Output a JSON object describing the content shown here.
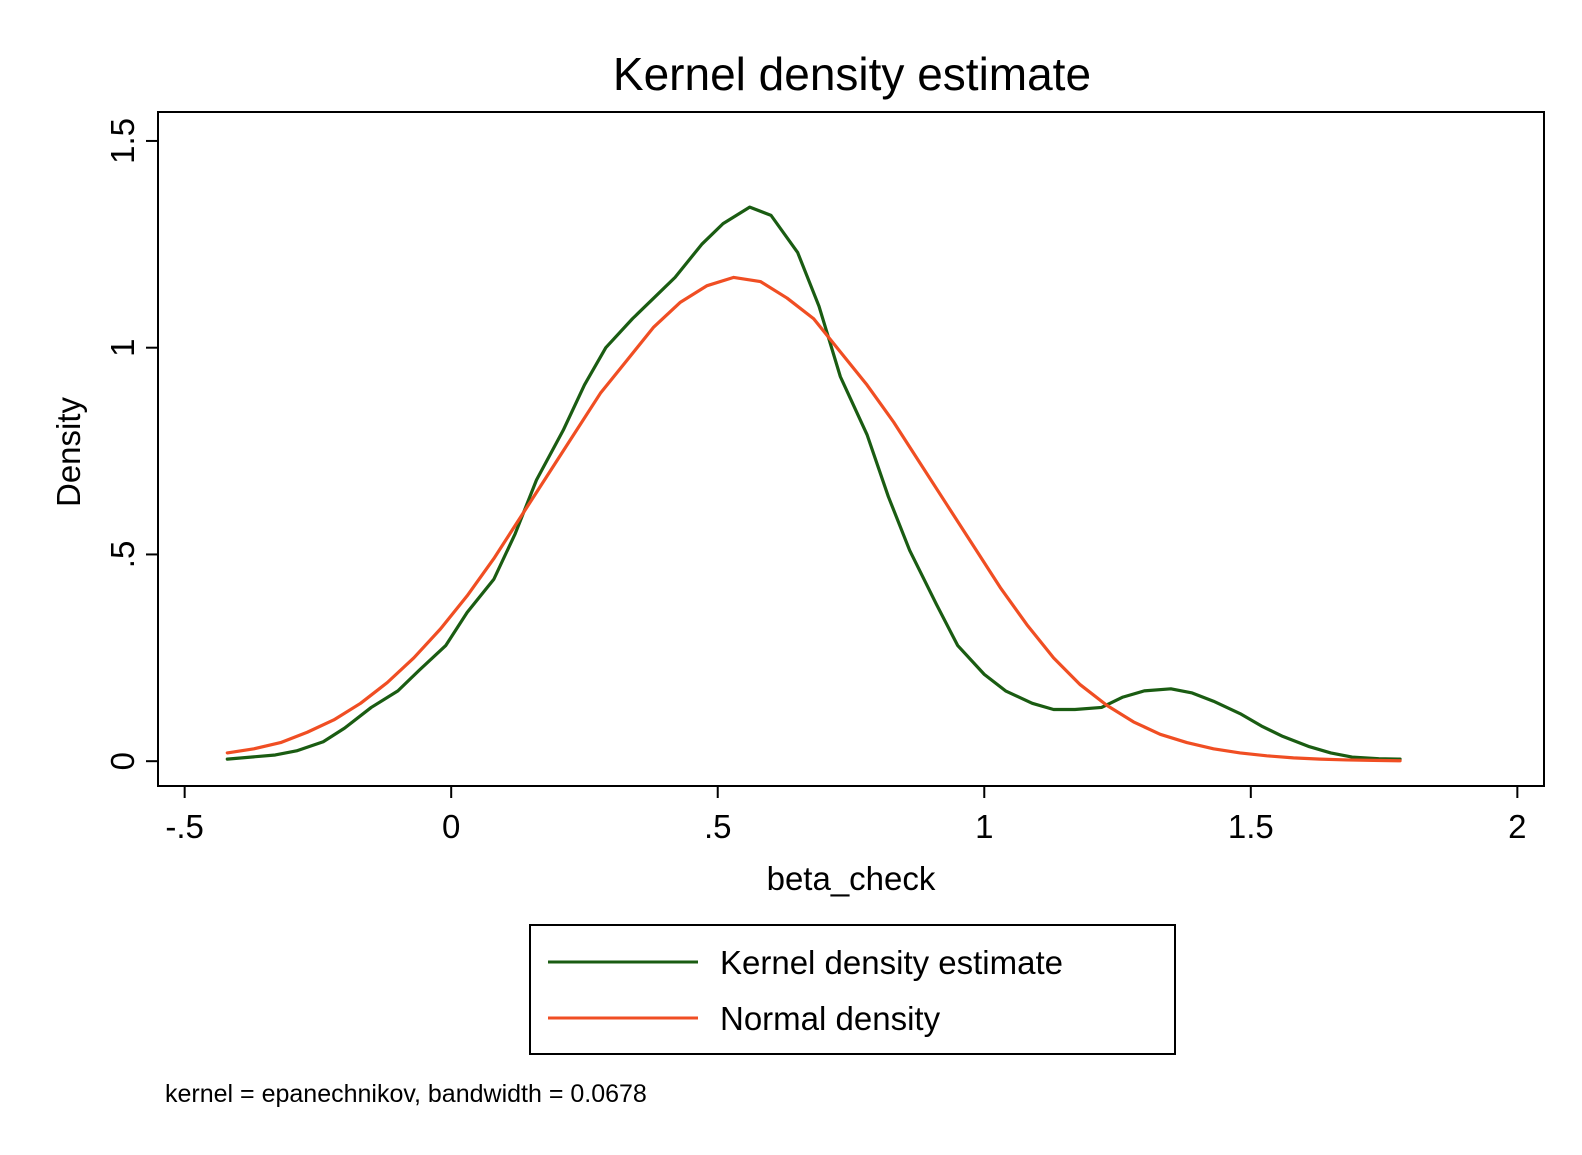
{
  "chart_data": {
    "type": "line",
    "title": "Kernel density estimate",
    "xlabel": "beta_check",
    "ylabel": "Density",
    "xlim": [
      -0.55,
      2.05
    ],
    "ylim": [
      -0.06,
      1.57
    ],
    "x_ticks": [
      -0.5,
      0,
      0.5,
      1,
      1.5,
      2
    ],
    "x_tick_labels": [
      "-.5",
      "0",
      ".5",
      "1",
      "1.5",
      "2"
    ],
    "y_ticks": [
      0,
      0.5,
      1,
      1.5
    ],
    "y_tick_labels": [
      "0",
      ".5",
      "1",
      "1.5"
    ],
    "grid": false,
    "legend_position": "bottom",
    "note": "kernel = epanechnikov, bandwidth = 0.0678",
    "series": [
      {
        "name": "Kernel density estimate",
        "color": "#1a5c12",
        "x": [
          -0.42,
          -0.33,
          -0.29,
          -0.24,
          -0.2,
          -0.15,
          -0.1,
          -0.06,
          -0.01,
          0.03,
          0.08,
          0.12,
          0.16,
          0.21,
          0.25,
          0.29,
          0.34,
          0.38,
          0.42,
          0.47,
          0.51,
          0.56,
          0.6,
          0.65,
          0.69,
          0.73,
          0.78,
          0.82,
          0.86,
          0.91,
          0.95,
          1.0,
          1.04,
          1.09,
          1.13,
          1.17,
          1.22,
          1.26,
          1.3,
          1.35,
          1.39,
          1.43,
          1.48,
          1.52,
          1.56,
          1.61,
          1.65,
          1.69,
          1.74,
          1.78
        ],
        "y": [
          0.005,
          0.015,
          0.025,
          0.047,
          0.08,
          0.13,
          0.17,
          0.22,
          0.28,
          0.36,
          0.44,
          0.55,
          0.68,
          0.8,
          0.91,
          1.0,
          1.07,
          1.12,
          1.17,
          1.25,
          1.3,
          1.34,
          1.32,
          1.23,
          1.1,
          0.93,
          0.79,
          0.64,
          0.51,
          0.38,
          0.28,
          0.21,
          0.17,
          0.14,
          0.125,
          0.125,
          0.13,
          0.155,
          0.17,
          0.175,
          0.165,
          0.145,
          0.115,
          0.085,
          0.06,
          0.035,
          0.02,
          0.01,
          0.006,
          0.005
        ]
      },
      {
        "name": "Normal density",
        "color": "#f04e23",
        "x": [
          -0.42,
          -0.37,
          -0.32,
          -0.27,
          -0.22,
          -0.17,
          -0.12,
          -0.07,
          -0.02,
          0.03,
          0.08,
          0.13,
          0.18,
          0.23,
          0.28,
          0.33,
          0.38,
          0.43,
          0.48,
          0.53,
          0.58,
          0.63,
          0.68,
          0.73,
          0.78,
          0.83,
          0.88,
          0.93,
          0.98,
          1.03,
          1.08,
          1.13,
          1.18,
          1.23,
          1.28,
          1.33,
          1.38,
          1.43,
          1.48,
          1.53,
          1.58,
          1.63,
          1.68,
          1.73,
          1.78
        ],
        "y": [
          0.02,
          0.03,
          0.045,
          0.07,
          0.1,
          0.14,
          0.19,
          0.25,
          0.32,
          0.4,
          0.49,
          0.59,
          0.69,
          0.79,
          0.89,
          0.97,
          1.05,
          1.11,
          1.15,
          1.17,
          1.16,
          1.12,
          1.07,
          0.99,
          0.91,
          0.82,
          0.72,
          0.62,
          0.52,
          0.42,
          0.33,
          0.25,
          0.185,
          0.135,
          0.095,
          0.065,
          0.045,
          0.03,
          0.02,
          0.013,
          0.008,
          0.005,
          0.003,
          0.002,
          0.001
        ]
      }
    ]
  }
}
